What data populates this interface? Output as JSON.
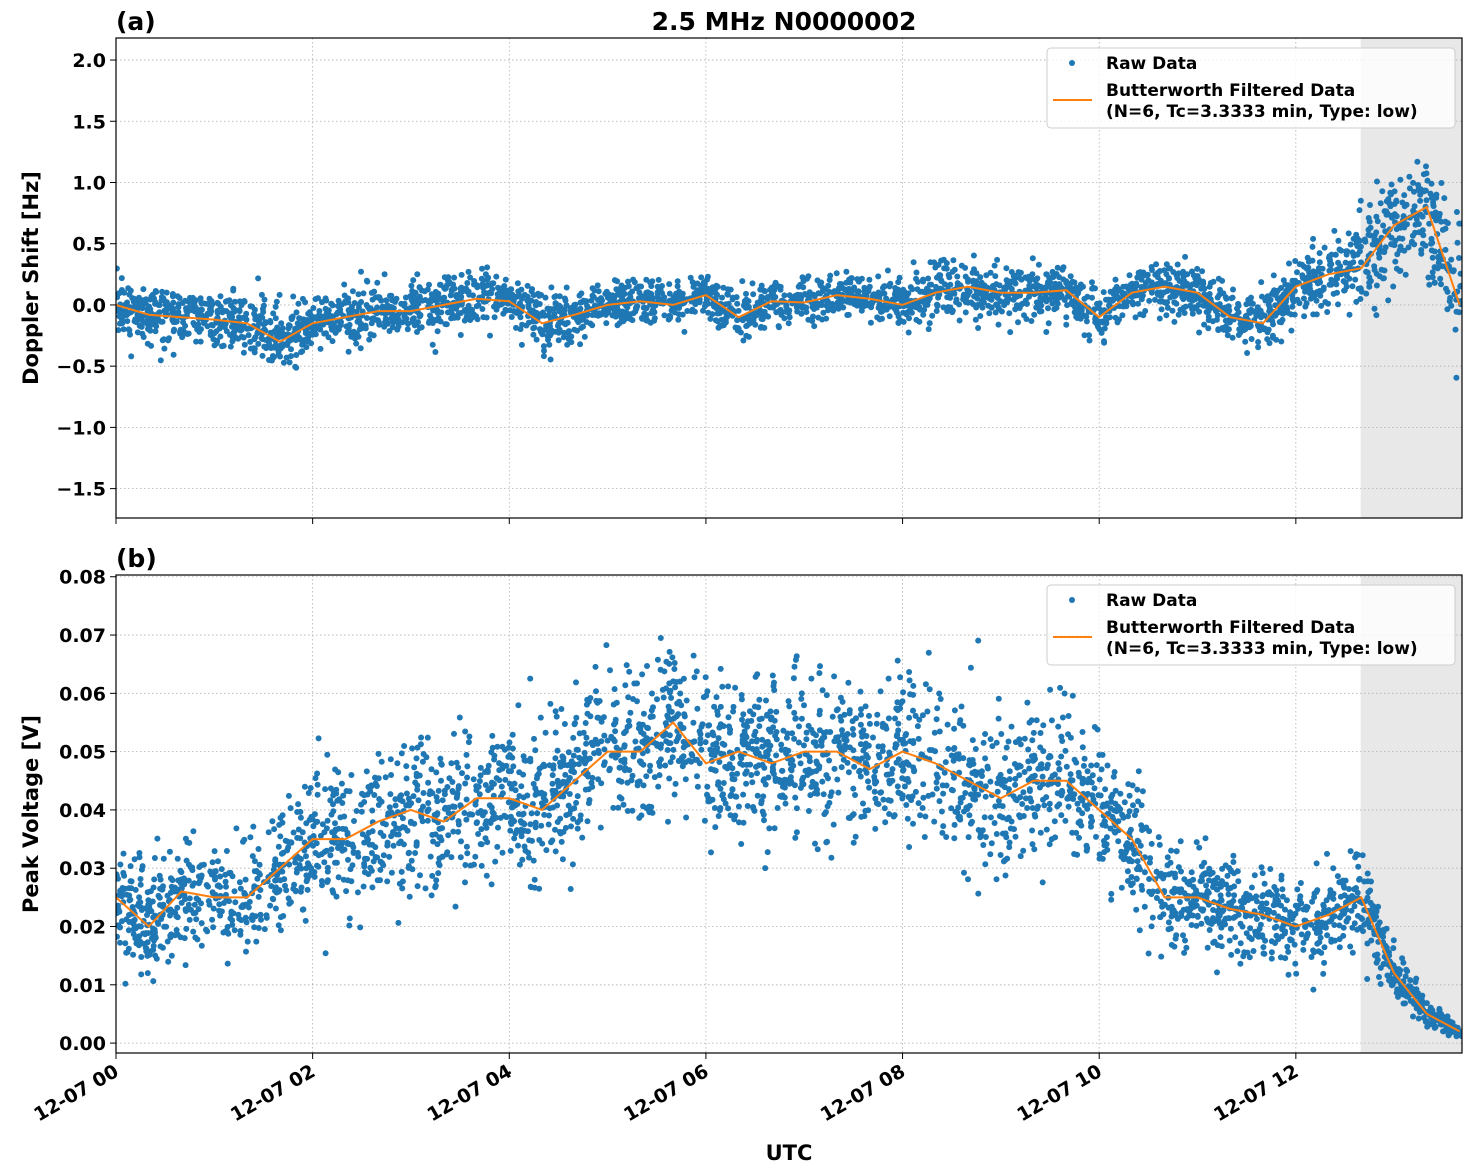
{
  "chart_data": {
    "title": "2.5 MHz N0000002",
    "xlabel": "UTC",
    "x_tick_labels": [
      "12-07 00",
      "12-07 02",
      "12-07 04",
      "12-07 06",
      "12-07 08",
      "12-07 10",
      "12-07 12"
    ],
    "x_range_hours": [
      0,
      13.69
    ],
    "shaded_region_hours": [
      12.66,
      13.69
    ],
    "shaded_color": "#e8e8e8",
    "grid": true,
    "colors": {
      "raw": "#1f77b4",
      "filtered": "#ff7f0e"
    },
    "filtered_x_hours_step": 0.3333,
    "panels": [
      {
        "label": "(a)",
        "type": "scatter+line",
        "ylabel": "Doppler Shift [Hz]",
        "ylim": [
          -1.74,
          2.18
        ],
        "y_ticks": [
          -1.5,
          -1.0,
          -0.5,
          0.0,
          0.5,
          1.0,
          1.5,
          2.0
        ],
        "y_tick_labels": [
          "−1.5",
          "−1.0",
          "−0.5",
          "0.0",
          "0.5",
          "1.0",
          "1.5",
          "2.0"
        ],
        "legend": {
          "placement": "top-right",
          "raw": "Raw Data",
          "filtered_line1": "Butterworth Filtered Data",
          "filtered_line2": "(N=6, Tc=3.3333 min, Type: low)"
        },
        "filtered": [
          0.0,
          -0.08,
          -0.1,
          -0.12,
          -0.15,
          -0.3,
          -0.15,
          -0.1,
          -0.05,
          -0.05,
          0.0,
          0.05,
          0.03,
          -0.15,
          -0.08,
          0.0,
          0.03,
          0.0,
          0.08,
          -0.1,
          0.03,
          0.02,
          0.08,
          0.05,
          0.0,
          0.1,
          0.15,
          0.1,
          0.1,
          0.12,
          -0.1,
          0.1,
          0.15,
          0.1,
          -0.1,
          -0.15,
          0.15,
          0.25,
          0.3,
          0.65,
          0.8,
          0.0
        ],
        "raw_spread": [
          0.2,
          0.2,
          0.2,
          0.2,
          0.22,
          0.3,
          0.22,
          0.2,
          0.2,
          0.2,
          0.2,
          0.2,
          0.2,
          0.25,
          0.2,
          0.15,
          0.15,
          0.15,
          0.15,
          0.2,
          0.15,
          0.15,
          0.15,
          0.15,
          0.15,
          0.18,
          0.2,
          0.2,
          0.18,
          0.18,
          0.2,
          0.15,
          0.2,
          0.22,
          0.2,
          0.22,
          0.22,
          0.25,
          0.35,
          0.4,
          0.45,
          0.6
        ]
      },
      {
        "label": "(b)",
        "type": "scatter+line",
        "ylabel": "Peak Voltage [V]",
        "ylim": [
          -0.0017,
          0.0803
        ],
        "y_ticks": [
          0.0,
          0.01,
          0.02,
          0.03,
          0.04,
          0.05,
          0.06,
          0.07,
          0.08
        ],
        "y_tick_labels": [
          "0.00",
          "0.01",
          "0.02",
          "0.03",
          "0.04",
          "0.05",
          "0.06",
          "0.07",
          "0.08"
        ],
        "legend": {
          "placement": "top-right",
          "raw": "Raw Data",
          "filtered_line1": "Butterworth Filtered Data",
          "filtered_line2": "(N=6, Tc=3.3333 min, Type: low)"
        },
        "filtered": [
          0.025,
          0.02,
          0.026,
          0.025,
          0.025,
          0.03,
          0.035,
          0.035,
          0.038,
          0.04,
          0.038,
          0.042,
          0.042,
          0.04,
          0.045,
          0.05,
          0.05,
          0.055,
          0.048,
          0.05,
          0.048,
          0.05,
          0.05,
          0.047,
          0.05,
          0.048,
          0.045,
          0.042,
          0.045,
          0.045,
          0.04,
          0.035,
          0.025,
          0.025,
          0.023,
          0.022,
          0.02,
          0.022,
          0.025,
          0.012,
          0.005,
          0.002
        ],
        "raw_spread": [
          0.01,
          0.008,
          0.009,
          0.008,
          0.009,
          0.01,
          0.011,
          0.012,
          0.012,
          0.012,
          0.012,
          0.012,
          0.012,
          0.012,
          0.012,
          0.012,
          0.012,
          0.011,
          0.012,
          0.012,
          0.012,
          0.012,
          0.012,
          0.012,
          0.012,
          0.012,
          0.012,
          0.012,
          0.012,
          0.011,
          0.011,
          0.01,
          0.008,
          0.007,
          0.007,
          0.007,
          0.007,
          0.007,
          0.008,
          0.004,
          0.002,
          0.001
        ]
      }
    ]
  }
}
